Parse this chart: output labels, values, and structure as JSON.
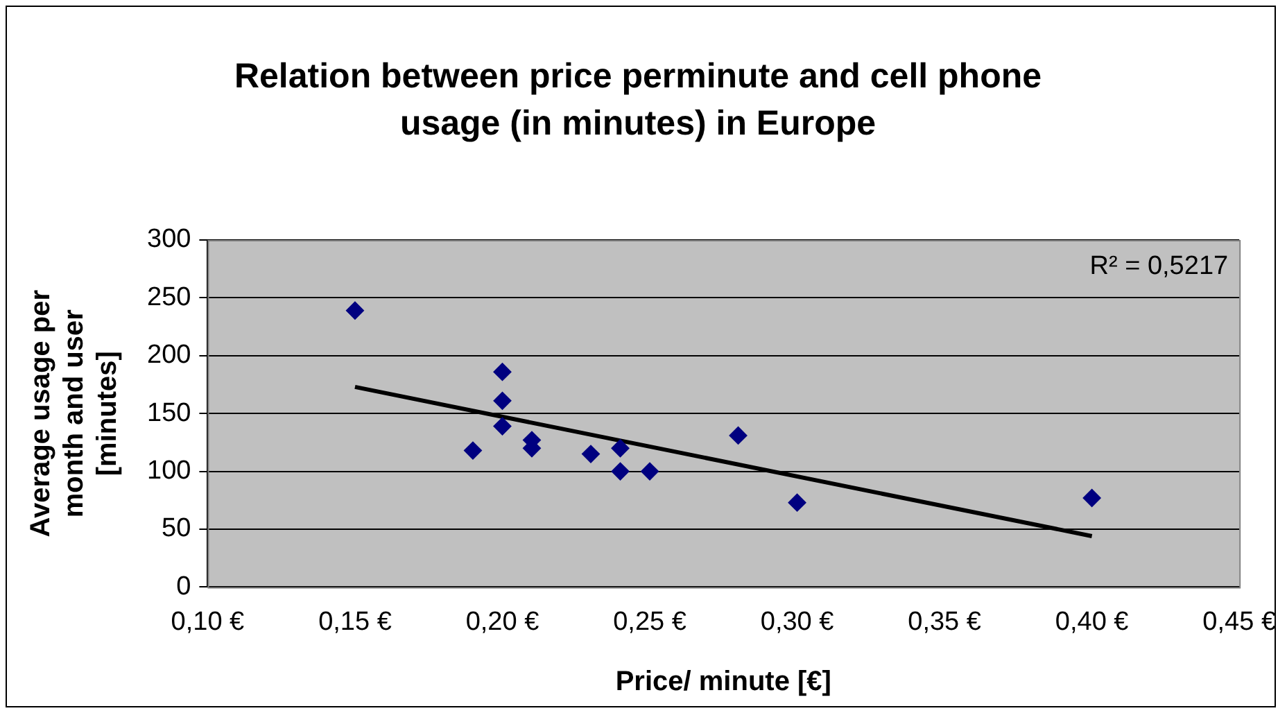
{
  "chart_data": {
    "type": "scatter",
    "title": "Relation between price perminute and cell phone usage (in minutes) in Europe",
    "xlabel": "Price/ minute [€]",
    "ylabel": "Average usage per month and user [minutes]",
    "x": [
      0.15,
      0.19,
      0.2,
      0.2,
      0.2,
      0.21,
      0.21,
      0.23,
      0.24,
      0.24,
      0.25,
      0.28,
      0.3,
      0.4
    ],
    "series": [
      {
        "type": "scatter",
        "color": "#000080",
        "marker": "diamond",
        "values": [
          239,
          118,
          186,
          161,
          139,
          127,
          120,
          115,
          120,
          100,
          100,
          131,
          73,
          77
        ]
      },
      {
        "type": "line",
        "color": "#000000",
        "marker": "none",
        "line_style": "solid",
        "x": [
          0.15,
          0.4
        ],
        "values": [
          173,
          44
        ]
      }
    ],
    "xlim": [
      0.1,
      0.45
    ],
    "xticks": [
      {
        "value": 0.1,
        "label": "0,10 €"
      },
      {
        "value": 0.15,
        "label": "0,15 €"
      },
      {
        "value": 0.2,
        "label": "0,20 €"
      },
      {
        "value": 0.25,
        "label": "0,25 €"
      },
      {
        "value": 0.3,
        "label": "0,30 €"
      },
      {
        "value": 0.35,
        "label": "0,35 €"
      },
      {
        "value": 0.4,
        "label": "0,40 €"
      },
      {
        "value": 0.45,
        "label": "0,45 €"
      }
    ],
    "ylim": [
      0,
      300
    ],
    "yticks": [
      0,
      50,
      100,
      150,
      200,
      250,
      300
    ],
    "grid": "y",
    "legend": false,
    "annotations": [
      "R² = 0,5217"
    ]
  }
}
